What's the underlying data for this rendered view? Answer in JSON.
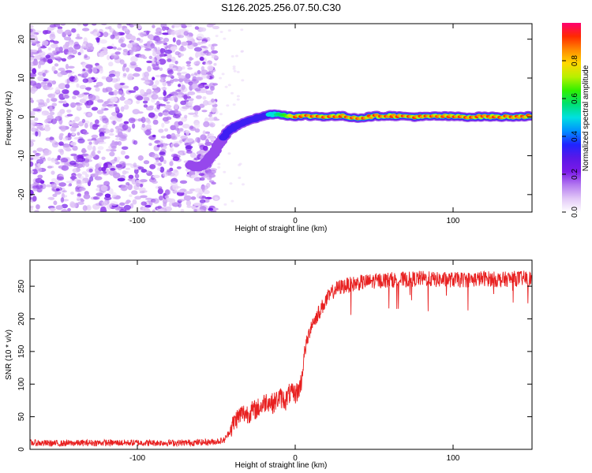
{
  "figure_title": "S126.2025.256.07.50.C30",
  "chart_data": [
    {
      "type": "heatmap",
      "title": "",
      "xlabel": "Height of straight line (km)",
      "ylabel": "Frequency (Hz)",
      "xlim": [
        -168,
        150
      ],
      "ylim": [
        -24.5,
        24
      ],
      "x_ticks": [
        -100,
        0,
        100
      ],
      "y_ticks": [
        -20,
        -10,
        0,
        10,
        20
      ],
      "colorbar": {
        "label": "Normalized spectral amplitude",
        "range": [
          0,
          1
        ],
        "ticks": [
          0.0,
          0.2,
          0.4,
          0.6,
          0.8
        ],
        "colormap": [
          "#ffffff",
          "#e2c8f7",
          "#b47af0",
          "#7b1ae8",
          "#5a18e8",
          "#1f24ff",
          "#0090ff",
          "#00e0e0",
          "#00e070",
          "#30f000",
          "#b8f000",
          "#ffd800",
          "#ff8a00",
          "#ff2a00",
          "#ff0070"
        ]
      },
      "noise_region_x": [
        -168,
        -50
      ],
      "ridge": {
        "x": [
          -66,
          -62,
          -58,
          -55,
          -52,
          -49,
          -46,
          -43,
          -40,
          -36,
          -32,
          -28,
          -24,
          -20,
          -16,
          -12,
          -8,
          -4,
          0,
          10,
          20,
          30,
          40,
          50,
          60,
          70,
          80,
          90,
          100,
          110,
          120,
          130,
          140,
          150
        ],
        "frequency": [
          -12.5,
          -12.8,
          -12.5,
          -11.0,
          -9.5,
          -7.5,
          -5.5,
          -4.0,
          -3.0,
          -2.0,
          -1.2,
          -0.6,
          -0.3,
          0.2,
          0.6,
          0.8,
          0.5,
          0.3,
          0.2,
          0.2,
          0.1,
          0.2,
          -0.3,
          0.2,
          0.3,
          0.1,
          0.0,
          0.2,
          0.1,
          0.0,
          0.1,
          0.0,
          0.1,
          0.2
        ],
        "amplitude": [
          0.2,
          0.25,
          0.25,
          0.22,
          0.25,
          0.28,
          0.3,
          0.32,
          0.32,
          0.35,
          0.38,
          0.4,
          0.42,
          0.45,
          0.5,
          0.55,
          0.6,
          0.7,
          0.95,
          0.95,
          0.95,
          0.92,
          0.9,
          0.95,
          0.95,
          0.93,
          0.95,
          0.9,
          0.92,
          0.95,
          0.93,
          0.95,
          0.92,
          0.9
        ]
      }
    },
    {
      "type": "line",
      "title": "",
      "xlabel": "Height of straight line (km)",
      "ylabel": "SNR (10 * v/v)",
      "xlim": [
        -168,
        150
      ],
      "ylim": [
        0,
        290
      ],
      "x_ticks": [
        -100,
        0,
        100
      ],
      "y_ticks": [
        0,
        50,
        100,
        150,
        200,
        250
      ],
      "color": "#e82020",
      "series": [
        {
          "x": [
            -168,
            -150,
            -130,
            -110,
            -90,
            -70,
            -55,
            -50,
            -45,
            -42,
            -38,
            -34,
            -30,
            -26,
            -22,
            -18,
            -14,
            -10,
            -6,
            -4,
            -2,
            0,
            2,
            4,
            6,
            10,
            15,
            20,
            25,
            30,
            40,
            50,
            60,
            70,
            80,
            90,
            100,
            110,
            120,
            130,
            140,
            150
          ],
          "values": [
            10,
            9,
            10,
            10,
            10,
            10,
            11,
            12,
            14,
            25,
            45,
            55,
            55,
            60,
            65,
            75,
            70,
            80,
            75,
            85,
            85,
            85,
            90,
            105,
            150,
            190,
            210,
            230,
            245,
            250,
            255,
            258,
            260,
            260,
            262,
            260,
            260,
            260,
            262,
            260,
            262,
            262
          ]
        }
      ]
    }
  ]
}
